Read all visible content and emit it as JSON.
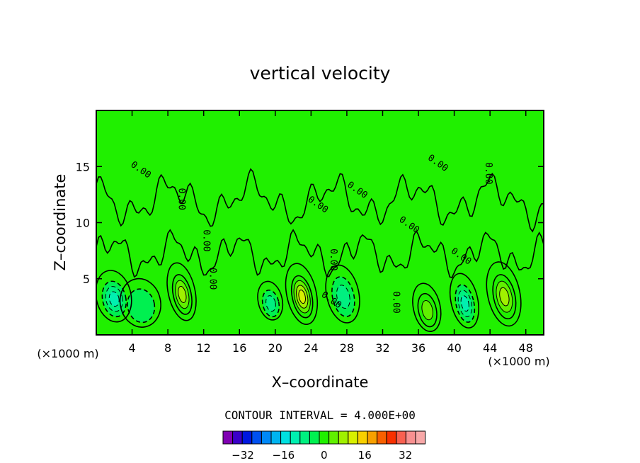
{
  "chart_data": {
    "type": "heatmap",
    "title": "vertical velocity",
    "xlabel": "X–coordinate",
    "ylabel": "Z–coordinate",
    "x_multiplier_left": "(×1000 m)",
    "x_multiplier_right": "(×1000 m)",
    "xlim": [
      0,
      50
    ],
    "ylim": [
      0,
      20
    ],
    "x_ticks": [
      4,
      8,
      12,
      16,
      20,
      24,
      28,
      32,
      36,
      40,
      44,
      48
    ],
    "y_ticks": [
      5,
      10,
      15
    ],
    "contour_interval_text": "CONTOUR INTERVAL = 4.000E+00",
    "contour_interval": 4.0,
    "contour_labels": [
      "0.00",
      "0.00",
      "0.00",
      "0.00",
      "0.00",
      "0.00",
      "0.00",
      "0.00",
      "0.00",
      "0.00",
      "0.00",
      "0.00",
      "0.00"
    ],
    "background_value": 0,
    "cells": [
      {
        "x": 2.0,
        "z": 3.2,
        "value": -12,
        "sx": 1.3,
        "sz": 1.6
      },
      {
        "x": 5.0,
        "z": 2.6,
        "value": -4,
        "sx": 1.5,
        "sz": 1.5
      },
      {
        "x": 9.6,
        "z": 3.6,
        "value": 12,
        "sx": 1.0,
        "sz": 1.8
      },
      {
        "x": 19.5,
        "z": 2.8,
        "value": -6,
        "sx": 0.9,
        "sz": 1.2
      },
      {
        "x": 23.0,
        "z": 3.4,
        "value": 14,
        "sx": 1.1,
        "sz": 1.9
      },
      {
        "x": 27.6,
        "z": 3.4,
        "value": -8,
        "sx": 1.2,
        "sz": 1.8
      },
      {
        "x": 37.0,
        "z": 2.2,
        "value": 8,
        "sx": 1.0,
        "sz": 1.5
      },
      {
        "x": 41.2,
        "z": 2.8,
        "value": -10,
        "sx": 1.0,
        "sz": 1.7
      },
      {
        "x": 45.6,
        "z": 3.4,
        "value": 12,
        "sx": 1.2,
        "sz": 2.0
      }
    ],
    "colorbar": {
      "tick_labels": [
        "−32",
        "−16",
        "0",
        "16",
        "32"
      ],
      "tick_values": [
        -32,
        -16,
        0,
        16,
        32
      ],
      "levels": [
        -36,
        -32,
        -28,
        -24,
        -20,
        -16,
        -12,
        -8,
        -4,
        0,
        4,
        8,
        12,
        16,
        20,
        24,
        28,
        32,
        36
      ],
      "colors": [
        "#7f00b2",
        "#3a00c8",
        "#0018e0",
        "#0050f0",
        "#0088f8",
        "#00b4f0",
        "#00e0e0",
        "#00f0b0",
        "#00f080",
        "#00f050",
        "#20f000",
        "#60f000",
        "#a0f000",
        "#d8f000",
        "#f8d000",
        "#f8a000",
        "#f86000",
        "#f83000",
        "#f86050",
        "#f89090",
        "#f8a8a8"
      ]
    }
  }
}
